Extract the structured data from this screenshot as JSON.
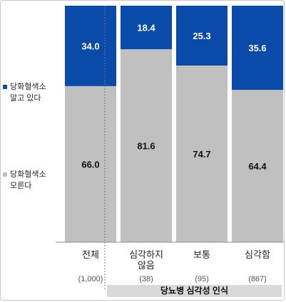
{
  "chart_data": {
    "type": "bar",
    "stacked": true,
    "categories": [
      "전체",
      "심각하지\n않음",
      "보통",
      "심각함"
    ],
    "sample_sizes": [
      "(1,000)",
      "(38)",
      "(95)",
      "(867)"
    ],
    "series": [
      {
        "name": "당화혈색소\n모른다",
        "values": [
          66.0,
          81.6,
          74.7,
          64.4
        ],
        "color": "#c0c0c0"
      },
      {
        "name": "당화혈색소\n알고 있다",
        "values": [
          34.0,
          18.4,
          25.3,
          35.6
        ],
        "color": "#0a4aa8"
      }
    ],
    "value_labels": [
      [
        "66.0",
        "81.6",
        "74.7",
        "64.4"
      ],
      [
        "34.0",
        "18.4",
        "25.3",
        "35.6"
      ]
    ],
    "ylim": [
      0,
      100
    ],
    "group_label": "당뇨병 심각성 인식",
    "grid": false,
    "legend_position": "left"
  }
}
